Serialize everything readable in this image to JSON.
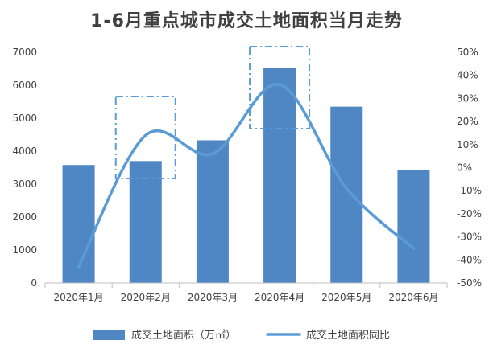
{
  "colors": {
    "bar": "#4f87c4",
    "line": "#5b9bd5",
    "axis": "#bfbfbf",
    "text": "#404040"
  },
  "chart_data": {
    "type": "bar",
    "title": "1-6月重点城市成交土地面积当月走势",
    "categories": [
      "2020年1月",
      "2020年2月",
      "2020年3月",
      "2020年4月",
      "2020年5月",
      "2020年6月"
    ],
    "series": [
      {
        "name": "成交土地面积（万㎡）",
        "type": "bar",
        "axis": "left",
        "values": [
          3580,
          3700,
          4330,
          6530,
          5350,
          3420
        ]
      },
      {
        "name": "成交土地面积同比",
        "type": "line",
        "axis": "right",
        "smooth": true,
        "values": [
          -43,
          14,
          6,
          36,
          -9,
          -35
        ]
      }
    ],
    "ylim_left": [
      0,
      7000
    ],
    "yticks_left": [
      "0",
      "1000",
      "2000",
      "3000",
      "4000",
      "5000",
      "6000",
      "7000"
    ],
    "ylim_right": [
      -50,
      50
    ],
    "yticks_right": [
      "-50%",
      "-40%",
      "-30%",
      "-20%",
      "-10%",
      "0%",
      "10%",
      "20%",
      "30%",
      "40%",
      "50%"
    ],
    "grid": false,
    "legend_position": "bottom",
    "annotations": [
      {
        "type": "dash-dot box",
        "around": "2020年2月"
      },
      {
        "type": "dash-dot box",
        "around": "2020年4月"
      }
    ]
  }
}
